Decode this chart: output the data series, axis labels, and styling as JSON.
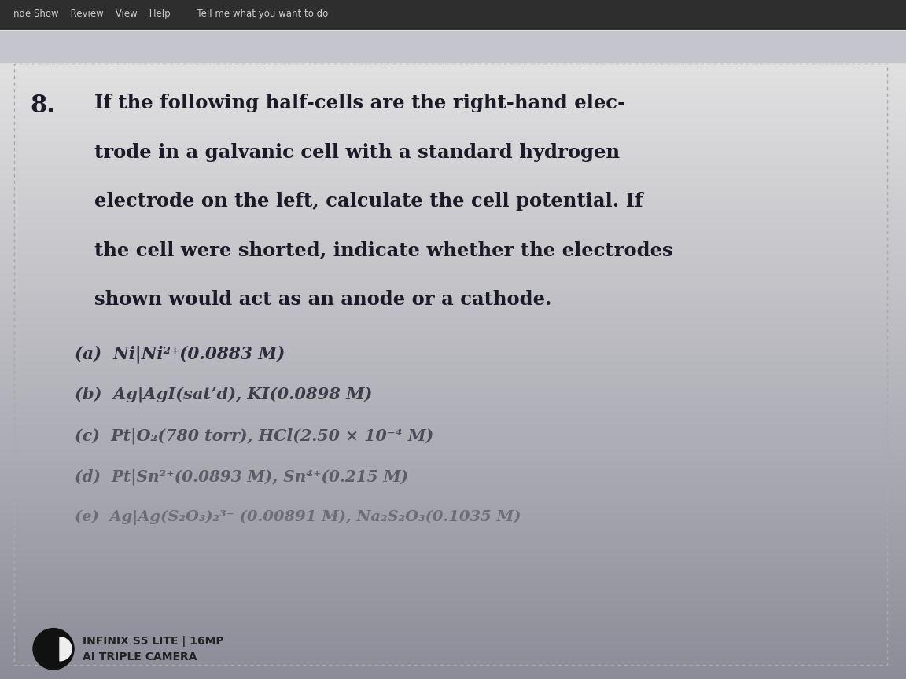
{
  "bg_top_color": "#4a4a5a",
  "bg_mid_color": "#b0b0be",
  "bg_bottom_color": "#d0d0d8",
  "content_bg_top": "#c8c8d0",
  "content_bg_bottom": "#e8e8ec",
  "toolbar_bg": "#2a2a35",
  "toolbar_text": "nde Show    Review    View    Help         Tell me what you want to do",
  "question_number": "8.",
  "paragraph_lines": [
    "If the following half-cells are the right-hand elec-",
    "trode in a galvanic cell with a standard hydrogen",
    "electrode on the left, calculate the cell potential. If",
    "the cell were shorted, indicate whether the electrodes",
    "shown would act as an anode or a cathode."
  ],
  "items": [
    "(a)  Ni|Ni²⁺(0.0883 M)",
    "(b)  Ag|AgI(sat’d), KI(0.0898 M)",
    "(c)  Pt|O₂(780 torr), HCl(2.50 × 10⁻⁴ M)",
    "(d)  Pt|Sn²⁺(0.0893 M), Sn⁴⁺(0.215 M)",
    "(e)  Ag|Ag(S₂O₃)₂³⁻ (0.00891 M), Na₂S₂O₃(0.1035 M)"
  ],
  "footer_line1": "INFINIX S5 LITE | 16MP",
  "footer_line2": "AI TRIPLE CAMERA",
  "text_color_dark": "#1a1a2a",
  "text_color_mid": "#2a2a3a",
  "text_color_light": "#3a3a4a",
  "toolbar_font_size": 8.5,
  "para_font_size": 17.5,
  "item_font_size": 15.5,
  "footer_font_size": 10
}
